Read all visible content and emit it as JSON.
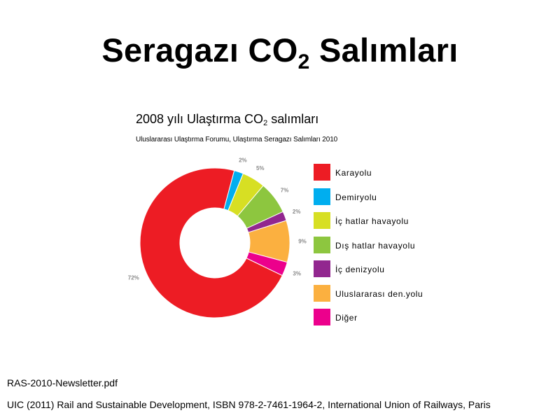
{
  "slide": {
    "title_main": "Seragazı CO",
    "title_sub": "2",
    "title_tail": " Salımları"
  },
  "chart_data": {
    "type": "pie",
    "donut": true,
    "title_main": "2008 yılı Ulaştırma CO",
    "title_sub": "2",
    "title_tail": " salımları",
    "subtitle": "Uluslararası Ulaştırma Forumu, Ulaştırma Seragazı Salımları 2010",
    "categories": [
      "Karayolu",
      "Demiryolu",
      "İç hatlar havayolu",
      "Dış hatlar havayolu",
      "İç denizyolu",
      "Uluslararası den.yolu",
      "Diğer"
    ],
    "values": [
      72,
      2,
      5,
      7,
      2,
      9,
      3
    ],
    "labels": [
      "72%",
      "2%",
      "5%",
      "7%",
      "2%",
      "9%",
      "3%"
    ],
    "colors": [
      "#ed1c24",
      "#00aeef",
      "#d7df23",
      "#8dc63f",
      "#92278f",
      "#fbb040",
      "#ec008c"
    ],
    "legend_position": "right"
  },
  "footer": {
    "line1": "RAS-2010-Newsletter.pdf",
    "line2": "UIC (2011) Rail and Sustainable Development, ISBN 978-2-7461-1964-2, International Union of Railways, Paris"
  }
}
